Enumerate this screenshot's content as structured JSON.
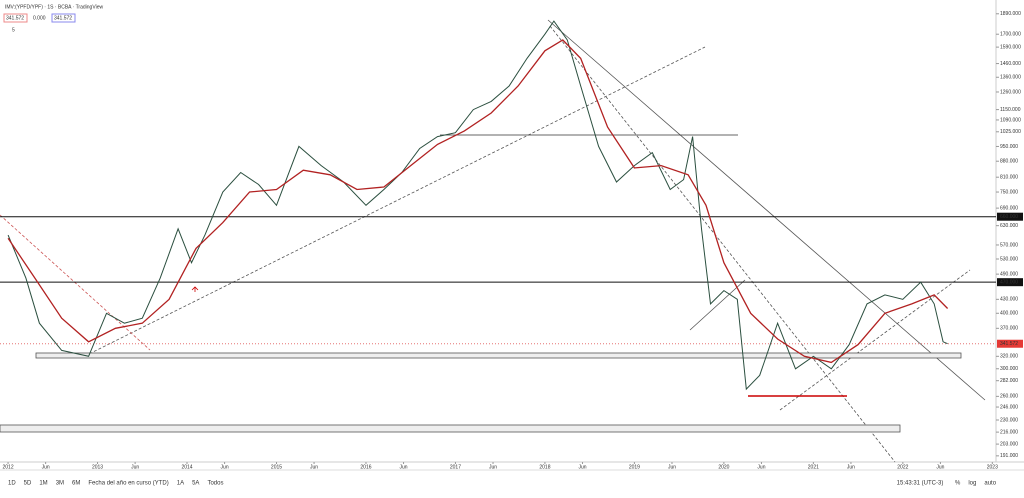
{
  "header": {
    "symbol": "IMV:(YPFD/YPF) · 1S · BCBA · TradingView",
    "legend_values": [
      "341.572",
      "0.000",
      "341.572"
    ],
    "indicator_count": "5"
  },
  "toolbar": {
    "ranges": [
      "1D",
      "5D",
      "1M",
      "3M",
      "6M",
      "Fecha del año en curso (YTD)",
      "1A",
      "5A",
      "Todos"
    ],
    "time": "15:43:31 (UTC-3)",
    "options": [
      "%",
      "log",
      "auto"
    ]
  },
  "chart_data": {
    "type": "line",
    "log_scale": true,
    "grid": false,
    "xlim": [
      2011.91,
      2023.03
    ],
    "xticks": [
      2012,
      {
        "value": 2012.42,
        "label": "Jun"
      },
      2013,
      {
        "value": 2013.42,
        "label": "Jun"
      },
      2014,
      {
        "value": 2014.42,
        "label": "Jun"
      },
      2015,
      {
        "value": 2015.42,
        "label": "Jun"
      },
      2016,
      {
        "value": 2016.42,
        "label": "Jun"
      },
      2017,
      {
        "value": 2017.42,
        "label": "Jun"
      },
      2018,
      {
        "value": 2018.42,
        "label": "Jun"
      },
      2019,
      {
        "value": 2019.42,
        "label": "Jun"
      },
      2020,
      {
        "value": 2020.42,
        "label": "Jun"
      },
      2021,
      {
        "value": 2021.42,
        "label": "Jun"
      },
      2022,
      {
        "value": 2022.42,
        "label": "Jun"
      },
      2023
    ],
    "ylim": [
      185,
      2030
    ],
    "yticks": [
      {
        "value": 1890,
        "label": "1890.000"
      },
      {
        "value": 1700,
        "label": "1700.000"
      },
      {
        "value": 1590,
        "label": "1590.000"
      },
      {
        "value": 1460,
        "label": "1460.000"
      },
      {
        "value": 1360,
        "label": "1360.000"
      },
      {
        "value": 1260,
        "label": "1260.000"
      },
      {
        "value": 1150,
        "label": "1150.000"
      },
      {
        "value": 1090,
        "label": "1090.000"
      },
      {
        "value": 1025,
        "label": "1025.000"
      },
      {
        "value": 950,
        "label": "950.000"
      },
      {
        "value": 880,
        "label": "880.000"
      },
      {
        "value": 810,
        "label": "810.000"
      },
      {
        "value": 750,
        "label": "750.000"
      },
      {
        "value": 690,
        "label": "690.000"
      },
      {
        "value": 630,
        "label": "630.000"
      },
      {
        "value": 570,
        "label": "570.000"
      },
      {
        "value": 530,
        "label": "530.000"
      },
      {
        "value": 490,
        "label": "490.000"
      },
      {
        "value": 430,
        "label": "430.000"
      },
      {
        "value": 400,
        "label": "400.000"
      },
      {
        "value": 370,
        "label": "370.000"
      },
      {
        "value": 320,
        "label": "320.000"
      },
      {
        "value": 300,
        "label": "300.000"
      },
      {
        "value": 282,
        "label": "282.000"
      },
      {
        "value": 260,
        "label": "260.000"
      },
      {
        "value": 246,
        "label": "246.000"
      },
      {
        "value": 230,
        "label": "230.000"
      },
      {
        "value": 216,
        "label": "216.000"
      },
      {
        "value": 203,
        "label": "203.000"
      },
      {
        "value": 191,
        "label": "191.000"
      }
    ],
    "levels": [
      {
        "value": 660,
        "label": "660.000"
      },
      {
        "value": 470,
        "label": "470.000"
      }
    ],
    "last_price": {
      "value": 341.572,
      "label": "341.572"
    },
    "series": [
      {
        "name": "IMV:(YPFD/YPF)",
        "color": "#2b4f3f",
        "x": [
          2012.0,
          2012.2,
          2012.35,
          2012.6,
          2012.9,
          2013.1,
          2013.3,
          2013.5,
          2013.7,
          2013.9,
          2014.05,
          2014.2,
          2014.4,
          2014.6,
          2014.8,
          2015.0,
          2015.25,
          2015.5,
          2015.75,
          2016.0,
          2016.2,
          2016.4,
          2016.6,
          2016.8,
          2017.0,
          2017.2,
          2017.4,
          2017.6,
          2017.8,
          2018.0,
          2018.1,
          2018.25,
          2018.4,
          2018.6,
          2018.8,
          2019.0,
          2019.2,
          2019.4,
          2019.55,
          2019.65,
          2019.75,
          2019.85,
          2020.0,
          2020.15,
          2020.25,
          2020.4,
          2020.6,
          2020.8,
          2021.0,
          2021.2,
          2021.4,
          2021.6,
          2021.8,
          2022.0,
          2022.2,
          2022.35,
          2022.45,
          2022.5
        ],
        "values": [
          600,
          480,
          380,
          330,
          320,
          400,
          380,
          390,
          480,
          620,
          520,
          600,
          750,
          830,
          780,
          700,
          950,
          860,
          790,
          700,
          760,
          830,
          940,
          1000,
          1020,
          1150,
          1200,
          1300,
          1500,
          1700,
          1820,
          1650,
          1300,
          950,
          790,
          860,
          920,
          760,
          800,
          1000,
          620,
          420,
          450,
          430,
          270,
          290,
          380,
          300,
          320,
          300,
          340,
          420,
          440,
          430,
          470,
          420,
          345,
          341.572
        ]
      },
      {
        "name": "MA",
        "color": "#b22222",
        "x": [
          2012.0,
          2012.3,
          2012.6,
          2012.9,
          2013.2,
          2013.5,
          2013.8,
          2014.1,
          2014.4,
          2014.7,
          2015.0,
          2015.3,
          2015.6,
          2015.9,
          2016.2,
          2016.5,
          2016.8,
          2017.1,
          2017.4,
          2017.7,
          2018.0,
          2018.2,
          2018.4,
          2018.7,
          2019.0,
          2019.3,
          2019.6,
          2019.8,
          2020.0,
          2020.3,
          2020.6,
          2020.9,
          2021.2,
          2021.5,
          2021.8,
          2022.1,
          2022.35,
          2022.5
        ],
        "values": [
          590,
          480,
          390,
          345,
          370,
          380,
          430,
          560,
          640,
          750,
          760,
          840,
          820,
          760,
          770,
          860,
          960,
          1030,
          1130,
          1300,
          1560,
          1650,
          1500,
          1050,
          850,
          860,
          820,
          700,
          520,
          400,
          350,
          320,
          310,
          340,
          400,
          420,
          440,
          410
        ]
      }
    ]
  }
}
